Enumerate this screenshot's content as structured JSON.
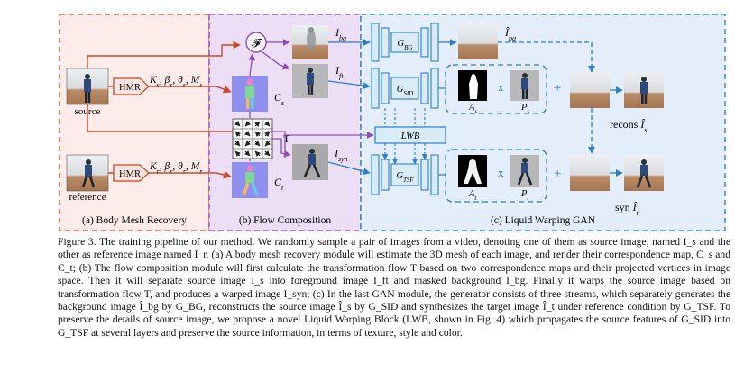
{
  "figure": {
    "panel_labels": [
      "(a) Body Mesh Recovery",
      "(b) Flow Composition",
      "(c) Liquid Warping GAN"
    ],
    "source_label": "source",
    "reference_label": "reference",
    "hmr": "HMR",
    "params_s": "K_s, β_s, θ_s, M_s",
    "params_r": "K_r, β_r, θ_r, M_r",
    "F_label": "𝓕",
    "T_label": "T",
    "Cs_label": "C_s",
    "Ct_label": "C_t",
    "I_bg": "I_bg",
    "I_ft": "I_ft",
    "I_syn": "I_syn",
    "G_BG": "G_BG",
    "G_SID": "G_SID",
    "G_TSF": "G_TSF",
    "LWB": "LWB",
    "Ihat_bg": "Î_bg",
    "A_s": "A_s",
    "P_s": "P_s",
    "A_t": "A_t",
    "P_t": "P_t",
    "times": "x",
    "plus": "+",
    "recons": "recons Î_s",
    "syn": "syn  Î_t",
    "colors": {
      "panel_a_fill": "#fdecea",
      "panel_a_border": "#e8604c",
      "panel_b_fill": "#ecdff5",
      "panel_b_border": "#9d5cc4",
      "panel_c_fill": "#e4eefa",
      "panel_c_border": "#4a8fd6",
      "arrow_red": "#c84a2a",
      "arrow_purple": "#8e4cbd",
      "arrow_blue": "#2f7fcf",
      "block_blue": "#d8ecf8"
    }
  },
  "caption": {
    "label": "Figure 3.",
    "text": "The training pipeline of our method. We randomly sample a pair of images from a video, denoting one of them as source image, named I_s and the other as reference image named I_r. (a) A body mesh recovery module will estimate the 3D mesh of each image, and render their correspondence map, C_s and C_t; (b) The flow composition module will first calculate the transformation flow T based on two correspondence maps and their projected vertices in image space. Then it will separate source image I_s into foreground image I_ft and masked background I_bg. Finally it warps the source image based on transformation flow T, and produces a warped image I_syn; (c) In the last GAN module, the generator consists of three streams, which separately generates the background image Î_bg by G_BG, reconstructs the source image Î_s by G_SID and synthesizes the target image Î_t under reference condition by G_TSF. To preserve the details of source image, we propose a novel Liquid Warping Block (LWB, shown in Fig. 4) which propagates the source features of G_SID into G_TSF at several layers and preserve the source information, in terms of texture, style and color."
  }
}
